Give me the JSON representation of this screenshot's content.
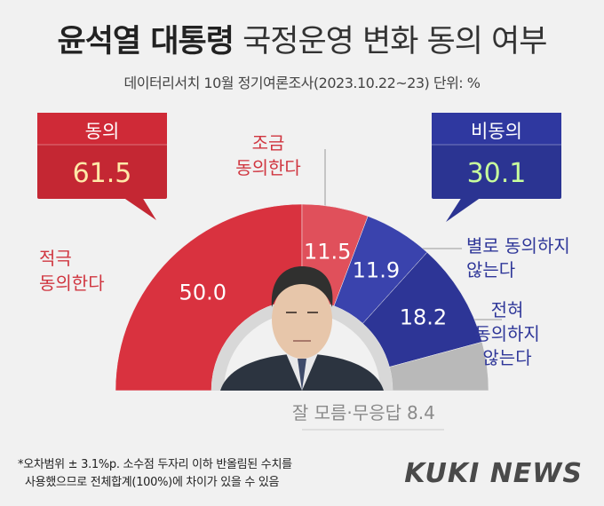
{
  "header": {
    "title_bold": "윤석열 대통령",
    "title_rest": "국정운영 변화 동의 여부",
    "subtitle": "데이터리서치 10월 정기여론조사(2023.10.22~23) 단위: %"
  },
  "colors": {
    "agree_strong": "#d9323f",
    "agree_some": "#e0505b",
    "disagree_some": "#3a43ad",
    "disagree_strong": "#2d3596",
    "unknown": "#b9b9b9",
    "red_text": "#d03640",
    "blue_text": "#2f3799",
    "gray_text": "#8a8a8a"
  },
  "chart_data": {
    "type": "pie",
    "variant": "half-donut",
    "unit": "%",
    "slices": [
      {
        "label": "적극 동의한다",
        "value": 50.0,
        "group": "agree"
      },
      {
        "label": "조금 동의한다",
        "value": 11.5,
        "group": "agree"
      },
      {
        "label": "별로 동의하지 않는다",
        "value": 11.9,
        "group": "disagree"
      },
      {
        "label": "전혀 동의하지 않는다",
        "value": 18.2,
        "group": "disagree"
      },
      {
        "label": "잘 모름·무응답",
        "value": 8.4,
        "group": "unknown"
      }
    ],
    "totals": [
      {
        "label": "동의",
        "value": "61.5"
      },
      {
        "label": "비동의",
        "value": "30.1"
      }
    ]
  },
  "labels": {
    "agree_strong": [
      "적극",
      "동의한다"
    ],
    "agree_some": [
      "조금",
      "동의한다"
    ],
    "disagree_some": [
      "별로 동의하지",
      "않는다"
    ],
    "disagree_strong": [
      "전혀",
      "동의하지",
      "않는다"
    ],
    "unknown": "잘 모름·무응답",
    "unknown_value": "8.4"
  },
  "footnote": {
    "line1": "*오차범위 ± 3.1%p. 소수점 두자리 이하 반올림된 수치를",
    "line2": "사용했으므로 전체합계(100%)에 차이가 있을 수 있음"
  },
  "logo": "KUKI NEWS"
}
